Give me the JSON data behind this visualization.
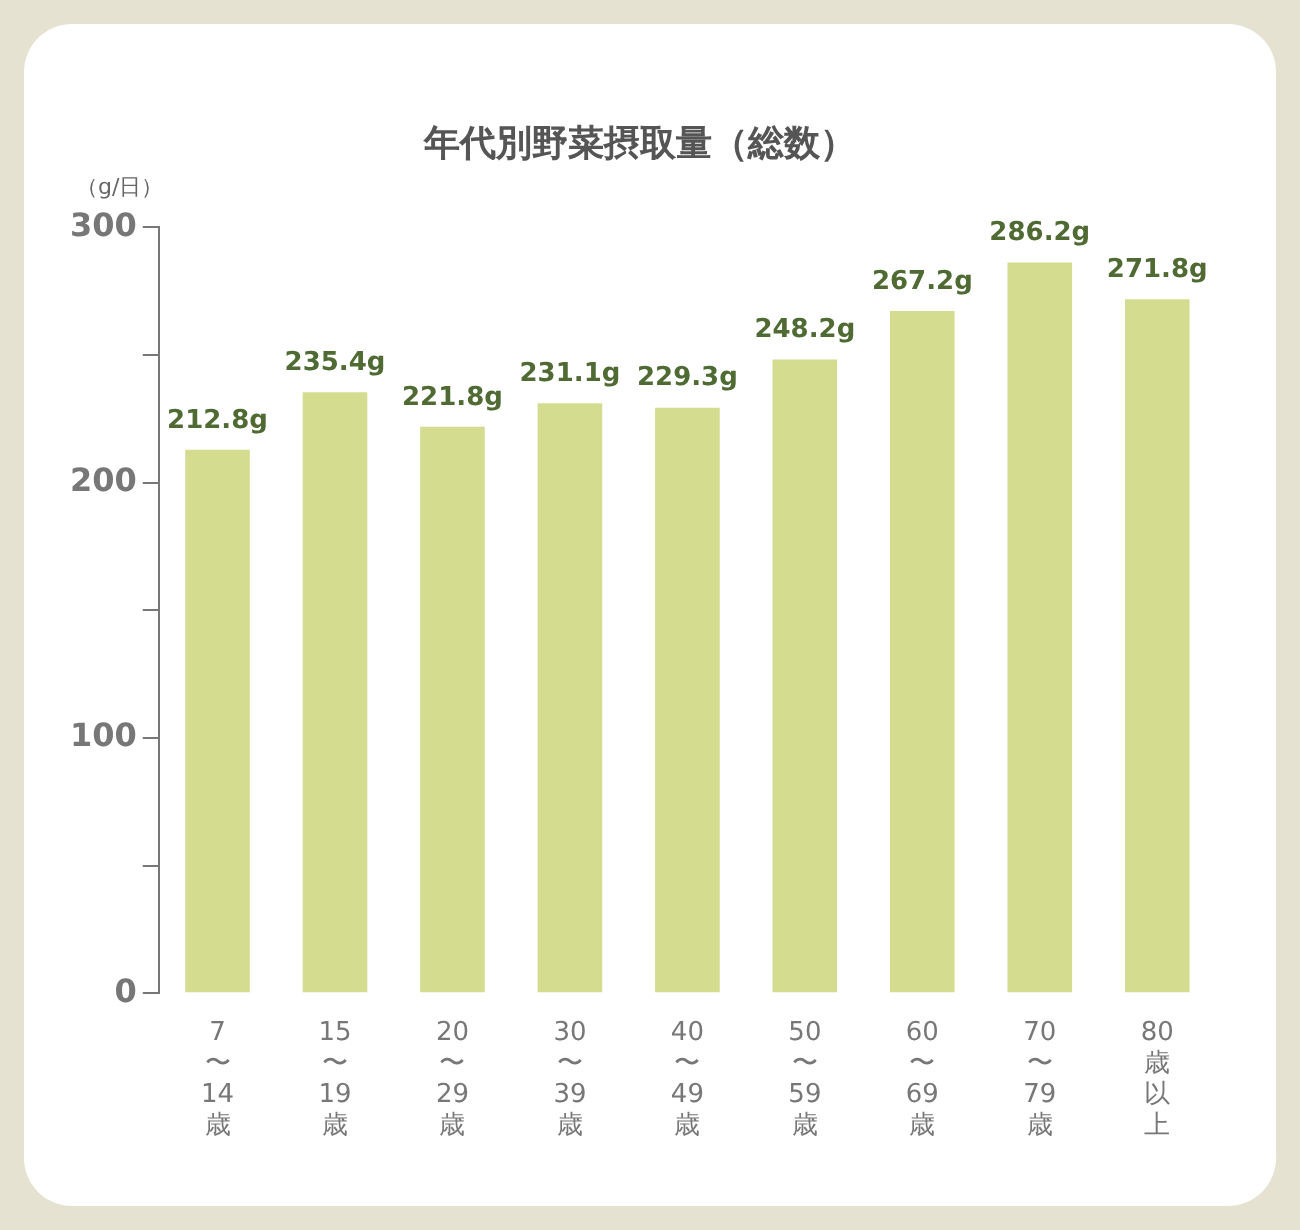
{
  "chart_data": {
    "type": "bar",
    "title": "年代別野菜摂取量（総数）",
    "ylabel": "（g/日）",
    "categories": [
      "7〜14歳",
      "15〜19歳",
      "20〜29歳",
      "30〜39歳",
      "40〜49歳",
      "50〜59歳",
      "60〜69歳",
      "70〜79歳",
      "80歳以上"
    ],
    "values": [
      212.8,
      235.4,
      221.8,
      231.1,
      229.3,
      248.2,
      267.2,
      286.2,
      271.8
    ],
    "value_labels": [
      "212.8g",
      "235.4g",
      "221.8g",
      "231.1g",
      "229.3g",
      "248.2g",
      "267.2g",
      "286.2g",
      "271.8g"
    ],
    "color": "#d4dc8f",
    "ylim": [
      0,
      300
    ],
    "yticks": [
      0,
      {
        "value": 50,
        "label": null
      },
      100,
      {
        "value": 150,
        "label": null
      },
      200,
      {
        "value": 250,
        "label": null
      },
      300
    ],
    "grid": false,
    "legend": false
  }
}
